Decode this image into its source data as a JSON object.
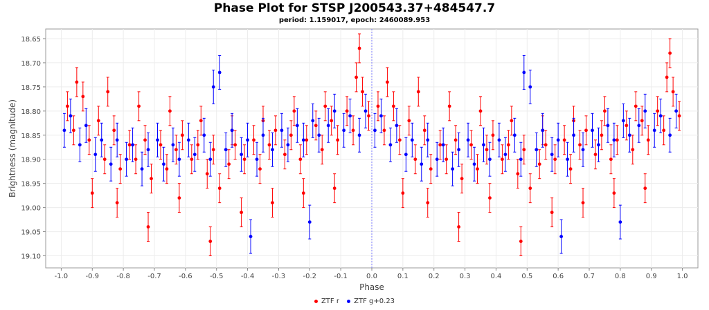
{
  "chart_data": {
    "type": "scatter",
    "title": "Phase Plot for STSP J200543.37+484547.7",
    "subtitle": "period: 1.159017, epoch: 2460089.953",
    "xlabel": "Phase",
    "ylabel": "Brightness (magnitude)",
    "xlim": [
      -1.05,
      1.05
    ],
    "ylim": [
      18.63,
      19.125
    ],
    "y_inverted": true,
    "x_ticks": [
      "-1.0",
      "-0.9",
      "-0.8",
      "-0.7",
      "-0.6",
      "-0.5",
      "-0.4",
      "-0.3",
      "-0.2",
      "-0.1",
      "0.0",
      "0.1",
      "0.2",
      "0.3",
      "0.4",
      "0.5",
      "0.6",
      "0.7",
      "0.8",
      "0.9",
      "1.0"
    ],
    "y_ticks": [
      "18.65",
      "18.70",
      "18.75",
      "18.80",
      "18.85",
      "18.90",
      "18.95",
      "19.00",
      "19.05",
      "19.10"
    ],
    "marker_line_x": 0.0,
    "legend": "bottom-center",
    "series": [
      {
        "name": "ZTF r",
        "color": "#ff0000",
        "error": 0.03,
        "points": [
          [
            -0.98,
            18.79
          ],
          [
            -0.96,
            18.84
          ],
          [
            -0.93,
            18.77
          ],
          [
            -0.91,
            18.86
          ],
          [
            -0.88,
            18.82
          ],
          [
            -0.86,
            18.9
          ],
          [
            -0.83,
            18.84
          ],
          [
            -0.81,
            18.92
          ],
          [
            -0.78,
            18.87
          ],
          [
            -0.76,
            18.9
          ],
          [
            -0.73,
            18.86
          ],
          [
            -0.71,
            18.94
          ],
          [
            -0.68,
            18.87
          ],
          [
            -0.66,
            18.92
          ],
          [
            -0.63,
            18.88
          ],
          [
            -0.61,
            18.85
          ],
          [
            -0.58,
            18.9
          ],
          [
            -0.56,
            18.87
          ],
          [
            -0.53,
            18.93
          ],
          [
            -0.51,
            18.88
          ],
          [
            -0.49,
            18.96
          ],
          [
            -0.46,
            18.91
          ],
          [
            -0.44,
            18.87
          ],
          [
            -0.41,
            18.9
          ],
          [
            -0.38,
            18.86
          ],
          [
            -0.36,
            18.92
          ],
          [
            -0.33,
            18.87
          ],
          [
            -0.31,
            18.84
          ],
          [
            -0.28,
            18.89
          ],
          [
            -0.26,
            18.85
          ],
          [
            -0.23,
            18.9
          ],
          [
            -0.21,
            18.86
          ],
          [
            -0.18,
            18.83
          ],
          [
            -0.16,
            18.88
          ],
          [
            -0.13,
            18.82
          ],
          [
            -0.11,
            18.86
          ],
          [
            -0.08,
            18.8
          ],
          [
            -0.06,
            18.84
          ],
          [
            -0.03,
            18.76
          ],
          [
            -0.01,
            18.81
          ],
          [
            0.02,
            18.79
          ],
          [
            0.04,
            18.84
          ],
          [
            0.07,
            18.79
          ],
          [
            0.09,
            18.86
          ],
          [
            0.12,
            18.82
          ],
          [
            0.14,
            18.9
          ],
          [
            0.17,
            18.84
          ],
          [
            0.19,
            18.92
          ],
          [
            0.22,
            18.87
          ],
          [
            0.24,
            18.9
          ],
          [
            0.27,
            18.86
          ],
          [
            0.29,
            18.94
          ],
          [
            0.32,
            18.87
          ],
          [
            0.34,
            18.92
          ],
          [
            0.37,
            18.88
          ],
          [
            0.39,
            18.85
          ],
          [
            0.42,
            18.9
          ],
          [
            0.44,
            18.87
          ],
          [
            0.47,
            18.93
          ],
          [
            0.49,
            18.88
          ],
          [
            0.51,
            18.96
          ],
          [
            0.54,
            18.91
          ],
          [
            0.56,
            18.87
          ],
          [
            0.59,
            18.9
          ],
          [
            0.62,
            18.86
          ],
          [
            0.64,
            18.92
          ],
          [
            0.67,
            18.87
          ],
          [
            0.69,
            18.84
          ],
          [
            0.72,
            18.89
          ],
          [
            0.74,
            18.85
          ],
          [
            0.77,
            18.9
          ],
          [
            0.79,
            18.86
          ],
          [
            0.82,
            18.83
          ],
          [
            0.84,
            18.88
          ],
          [
            0.87,
            18.82
          ],
          [
            0.89,
            18.86
          ],
          [
            0.92,
            18.8
          ],
          [
            0.94,
            18.84
          ],
          [
            0.97,
            18.76
          ],
          [
            0.99,
            18.81
          ],
          [
            -0.95,
            18.74
          ],
          [
            -0.85,
            18.76
          ],
          [
            -0.75,
            18.79
          ],
          [
            -0.65,
            18.8
          ],
          [
            -0.55,
            18.82
          ],
          [
            -0.45,
            18.84
          ],
          [
            -0.35,
            18.82
          ],
          [
            -0.25,
            18.8
          ],
          [
            -0.15,
            18.79
          ],
          [
            -0.05,
            18.73
          ],
          [
            0.05,
            18.74
          ],
          [
            0.15,
            18.76
          ],
          [
            0.25,
            18.79
          ],
          [
            0.35,
            18.8
          ],
          [
            0.45,
            18.82
          ],
          [
            0.55,
            18.84
          ],
          [
            0.65,
            18.82
          ],
          [
            0.75,
            18.8
          ],
          [
            0.85,
            18.79
          ],
          [
            0.95,
            18.73
          ],
          [
            -0.9,
            18.97
          ],
          [
            -0.82,
            18.99
          ],
          [
            -0.72,
            19.04
          ],
          [
            -0.62,
            18.98
          ],
          [
            -0.52,
            19.07
          ],
          [
            -0.42,
            19.01
          ],
          [
            -0.32,
            18.99
          ],
          [
            -0.22,
            18.97
          ],
          [
            -0.12,
            18.96
          ],
          [
            0.1,
            18.97
          ],
          [
            0.18,
            18.99
          ],
          [
            0.28,
            19.04
          ],
          [
            0.38,
            18.98
          ],
          [
            0.48,
            19.07
          ],
          [
            0.58,
            19.01
          ],
          [
            0.68,
            18.99
          ],
          [
            0.78,
            18.97
          ],
          [
            0.88,
            18.96
          ],
          [
            -0.04,
            18.67
          ],
          [
            0.96,
            18.68
          ]
        ]
      },
      {
        "name": "ZTF g+0.23",
        "color": "#0000ff",
        "error": 0.035,
        "points": [
          [
            -0.99,
            18.84
          ],
          [
            -0.97,
            18.81
          ],
          [
            -0.94,
            18.87
          ],
          [
            -0.92,
            18.83
          ],
          [
            -0.89,
            18.89
          ],
          [
            -0.87,
            18.86
          ],
          [
            -0.84,
            18.91
          ],
          [
            -0.82,
            18.86
          ],
          [
            -0.79,
            18.9
          ],
          [
            -0.77,
            18.87
          ],
          [
            -0.74,
            18.92
          ],
          [
            -0.72,
            18.88
          ],
          [
            -0.69,
            18.86
          ],
          [
            -0.67,
            18.91
          ],
          [
            -0.64,
            18.87
          ],
          [
            -0.62,
            18.9
          ],
          [
            -0.59,
            18.86
          ],
          [
            -0.57,
            18.89
          ],
          [
            -0.54,
            18.85
          ],
          [
            -0.52,
            18.9
          ],
          [
            -0.47,
            18.88
          ],
          [
            -0.45,
            18.84
          ],
          [
            -0.42,
            18.89
          ],
          [
            -0.4,
            18.86
          ],
          [
            -0.37,
            18.9
          ],
          [
            -0.35,
            18.85
          ],
          [
            -0.32,
            18.88
          ],
          [
            -0.29,
            18.84
          ],
          [
            -0.27,
            18.87
          ],
          [
            -0.24,
            18.83
          ],
          [
            -0.22,
            18.86
          ],
          [
            -0.19,
            18.82
          ],
          [
            -0.17,
            18.85
          ],
          [
            -0.14,
            18.83
          ],
          [
            -0.12,
            18.8
          ],
          [
            -0.09,
            18.84
          ],
          [
            -0.07,
            18.81
          ],
          [
            -0.04,
            18.85
          ],
          [
            -0.02,
            18.8
          ],
          [
            0.01,
            18.84
          ],
          [
            0.03,
            18.81
          ],
          [
            0.06,
            18.87
          ],
          [
            0.08,
            18.83
          ],
          [
            0.11,
            18.89
          ],
          [
            0.13,
            18.86
          ],
          [
            0.16,
            18.91
          ],
          [
            0.18,
            18.86
          ],
          [
            0.21,
            18.9
          ],
          [
            0.23,
            18.87
          ],
          [
            0.26,
            18.92
          ],
          [
            0.28,
            18.88
          ],
          [
            0.31,
            18.86
          ],
          [
            0.33,
            18.91
          ],
          [
            0.36,
            18.87
          ],
          [
            0.38,
            18.9
          ],
          [
            0.41,
            18.86
          ],
          [
            0.43,
            18.89
          ],
          [
            0.46,
            18.85
          ],
          [
            0.48,
            18.9
          ],
          [
            0.53,
            18.88
          ],
          [
            0.55,
            18.84
          ],
          [
            0.58,
            18.89
          ],
          [
            0.6,
            18.86
          ],
          [
            0.63,
            18.9
          ],
          [
            0.65,
            18.85
          ],
          [
            0.68,
            18.88
          ],
          [
            0.71,
            18.84
          ],
          [
            0.73,
            18.87
          ],
          [
            0.76,
            18.83
          ],
          [
            0.78,
            18.86
          ],
          [
            0.81,
            18.82
          ],
          [
            0.83,
            18.85
          ],
          [
            0.86,
            18.83
          ],
          [
            0.88,
            18.8
          ],
          [
            0.91,
            18.84
          ],
          [
            0.93,
            18.81
          ],
          [
            0.96,
            18.85
          ],
          [
            0.98,
            18.8
          ],
          [
            -0.51,
            18.75
          ],
          [
            -0.49,
            18.72
          ],
          [
            0.49,
            18.72
          ],
          [
            0.51,
            18.75
          ],
          [
            -0.39,
            19.06
          ],
          [
            -0.2,
            19.03
          ],
          [
            0.61,
            19.06
          ],
          [
            0.8,
            19.03
          ]
        ]
      }
    ]
  }
}
